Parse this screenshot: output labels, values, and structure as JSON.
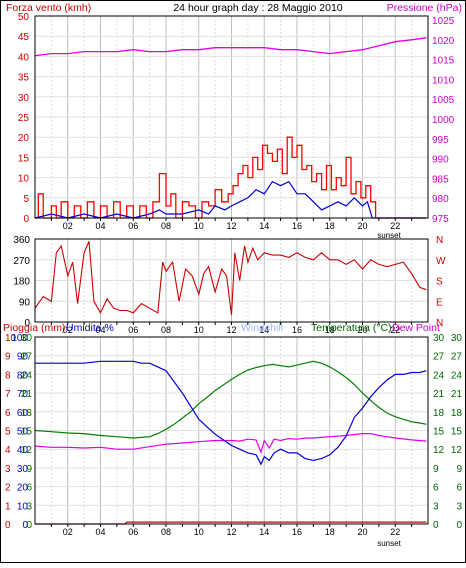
{
  "chart_data": [
    {
      "type": "line",
      "title": "24 hour graph day : 28 Maggio 2010",
      "left_axis_label": "Forza vento (kmh)",
      "right_axis_label": "Pressione (hPa)",
      "x_tick_labels": [
        "02",
        "04",
        "06",
        "08",
        "10",
        "12",
        "14",
        "16",
        "18",
        "20",
        "22"
      ],
      "x_annotation": "sunset",
      "y_left_ticks": [
        "0",
        "5",
        "10",
        "15",
        "20",
        "25",
        "30",
        "35",
        "40",
        "45",
        "50"
      ],
      "y_right_ticks": [
        "975",
        "980",
        "985",
        "990",
        "995",
        "1000",
        "1005",
        "1010",
        "1015",
        "1020",
        "1025"
      ],
      "ylim_left": [
        0,
        50
      ],
      "ylim_right": [
        975,
        1026
      ],
      "colors": {
        "wind_gust": "#ff0000",
        "wind_avg": "#0000cc",
        "pressure": "#e000e0",
        "label_left": "#cc0000",
        "label_right": "#cc00cc"
      },
      "series": [
        {
          "role": "gust",
          "axis": "left",
          "x": [
            0.0,
            0.2,
            0.5,
            1.0,
            1.3,
            1.6,
            2.0,
            2.4,
            2.8,
            3.2,
            3.6,
            4.0,
            4.4,
            4.8,
            5.2,
            5.6,
            6.0,
            6.4,
            6.8,
            7.2,
            7.6,
            8.0,
            8.3,
            8.6,
            9.0,
            9.4,
            9.8,
            10.2,
            10.6,
            11.0,
            11.4,
            11.8,
            12.1,
            12.4,
            12.7,
            13.0,
            13.3,
            13.6,
            13.9,
            14.2,
            14.5,
            14.8,
            15.1,
            15.4,
            15.7,
            16.0,
            16.3,
            16.6,
            16.9,
            17.2,
            17.5,
            17.8,
            18.1,
            18.4,
            18.7,
            19.0,
            19.3,
            19.6,
            19.9,
            20.2,
            20.5,
            20.8,
            21.2,
            21.6,
            22.0,
            22.5,
            23.0,
            23.5,
            23.9
          ],
          "y": [
            0,
            6,
            0,
            3,
            0,
            4,
            0,
            3,
            0,
            4,
            0,
            3,
            0,
            4,
            0,
            3,
            0,
            3,
            0,
            4,
            11,
            3,
            6,
            0,
            4,
            3,
            0,
            4,
            3,
            7,
            4,
            6,
            8,
            11,
            13,
            10,
            15,
            12,
            18,
            16,
            14,
            17,
            11,
            20,
            15,
            18,
            12,
            13,
            9,
            11,
            7,
            13,
            7,
            10,
            8,
            15,
            6,
            9,
            5,
            8,
            4,
            0,
            0,
            0,
            0,
            0,
            0,
            0,
            0
          ]
        },
        {
          "role": "average",
          "axis": "left",
          "x": [
            0.0,
            1.0,
            2.0,
            3.0,
            4.0,
            5.0,
            6.0,
            7.0,
            7.6,
            8.0,
            9.0,
            10.0,
            10.6,
            11.0,
            11.6,
            12.0,
            12.5,
            13.0,
            13.5,
            14.0,
            14.5,
            15.0,
            15.5,
            16.0,
            16.5,
            17.0,
            17.5,
            18.0,
            18.5,
            19.0,
            19.5,
            20.0,
            20.3,
            20.6,
            21.0,
            22.0,
            23.0,
            23.9
          ],
          "y": [
            0,
            1,
            0,
            1,
            0,
            1,
            0,
            1,
            2,
            1,
            1,
            2,
            1,
            3,
            2,
            3,
            4,
            5,
            7,
            6,
            9,
            8,
            9,
            6,
            6,
            4,
            2,
            3,
            4,
            3,
            5,
            3,
            4,
            0,
            0,
            0,
            0,
            0
          ]
        },
        {
          "role": "pressure",
          "axis": "right",
          "x": [
            0,
            1,
            2,
            3,
            4,
            5,
            6,
            7,
            8,
            9,
            10,
            11,
            12,
            13,
            14,
            15,
            16,
            17,
            18,
            19,
            20,
            21,
            22,
            23,
            23.9
          ],
          "y": [
            1016,
            1016.5,
            1016.5,
            1017,
            1017,
            1017,
            1017.5,
            1017,
            1017,
            1017.5,
            1017.5,
            1018,
            1018,
            1018,
            1018,
            1017.5,
            1017.5,
            1017,
            1016.5,
            1017,
            1017.5,
            1018.5,
            1019.5,
            1020,
            1020.5
          ]
        }
      ]
    },
    {
      "type": "line",
      "title": "",
      "left_ticks": [
        "360",
        "270",
        "180",
        "90",
        "0"
      ],
      "right_ticks": [
        "N",
        "W",
        "S",
        "E",
        "N"
      ],
      "x_tick_labels": [
        "02",
        "04",
        "06",
        "08",
        "10",
        "12",
        "14",
        "16",
        "18",
        "20",
        "22"
      ],
      "ylim": [
        0,
        360
      ],
      "color": "#cc0000",
      "series": [
        {
          "role": "wind_direction",
          "x": [
            0,
            0.5,
            1,
            1.3,
            1.6,
            2,
            2.3,
            2.6,
            3,
            3.3,
            3.6,
            4,
            4.4,
            4.8,
            5.2,
            5.6,
            6,
            6.5,
            7,
            7.5,
            7.8,
            8,
            8.4,
            8.8,
            9.2,
            9.6,
            10,
            10.3,
            10.6,
            11,
            11.4,
            11.7,
            12,
            12.2,
            12.5,
            12.8,
            13,
            13.3,
            13.6,
            14,
            14.5,
            15,
            15.5,
            16,
            16.5,
            17,
            17.5,
            18,
            18.5,
            19,
            19.5,
            20,
            20.5,
            21,
            21.5,
            22,
            22.5,
            23,
            23.5,
            23.9
          ],
          "y": [
            60,
            110,
            90,
            300,
            330,
            200,
            260,
            80,
            300,
            350,
            90,
            40,
            100,
            60,
            50,
            50,
            40,
            80,
            60,
            40,
            260,
            220,
            260,
            90,
            230,
            200,
            120,
            210,
            240,
            130,
            230,
            200,
            30,
            300,
            180,
            330,
            260,
            320,
            270,
            300,
            290,
            290,
            280,
            300,
            280,
            270,
            300,
            270,
            270,
            250,
            270,
            230,
            270,
            250,
            240,
            250,
            260,
            210,
            150,
            140
          ]
        }
      ]
    },
    {
      "type": "line",
      "title": "",
      "labels": {
        "rain": "Pioggia (mm)",
        "humidity": "Umidita %",
        "windchill": "Windchill",
        "temperature": "Temperatura (°C)",
        "dew_point": "Dew Point",
        "sunset": "sunset"
      },
      "x_tick_labels": [
        "02",
        "04",
        "06",
        "08",
        "10",
        "12",
        "14",
        "16",
        "18",
        "20",
        "22"
      ],
      "left_outer_ticks": [
        "0",
        "1",
        "2",
        "3",
        "4",
        "5",
        "6",
        "7",
        "8",
        "9",
        "10"
      ],
      "left_inner_ticks": [
        "0",
        "10",
        "20",
        "30",
        "40",
        "50",
        "60",
        "70",
        "80",
        "90",
        "100"
      ],
      "left_temp_ticks": [
        "0",
        "3",
        "6",
        "9",
        "12",
        "15",
        "18",
        "21",
        "24",
        "27",
        "30"
      ],
      "right_inner_ticks": [
        "0",
        "3",
        "6",
        "9",
        "12",
        "15",
        "18",
        "21",
        "24",
        "27",
        "30"
      ],
      "right_outer_ticks": [
        "0",
        "3",
        "6",
        "9",
        "12",
        "15",
        "18",
        "21",
        "24",
        "27",
        "30"
      ],
      "ylim_temp": [
        0,
        30
      ],
      "ylim_humidity": [
        0,
        100
      ],
      "ylim_rain": [
        0,
        10
      ],
      "colors": {
        "humidity": "#0000cc",
        "temperature": "#008000",
        "dew_point": "#e000e0",
        "rain": "#cc0000",
        "windchill": "#99bbff",
        "temp_label": "#006600",
        "dew_label": "#cc00cc",
        "rain_label": "#cc0000",
        "humidity_label": "#0000cc"
      },
      "series": [
        {
          "role": "humidity",
          "axis": "humidity",
          "x": [
            0,
            1,
            2,
            3,
            4,
            5,
            6,
            6.5,
            7,
            7.5,
            8,
            8.5,
            9,
            9.5,
            10,
            10.5,
            11,
            11.5,
            12,
            12.5,
            13,
            13.5,
            13.8,
            14,
            14.3,
            14.6,
            15,
            15.5,
            16,
            16.5,
            17,
            17.5,
            18,
            18.5,
            19,
            19.5,
            20,
            20.5,
            21,
            21.5,
            22,
            22.5,
            23,
            23.5,
            23.9
          ],
          "y": [
            86,
            86,
            86,
            86,
            87,
            87,
            87,
            86,
            86,
            84,
            82,
            76,
            70,
            63,
            56,
            52,
            48,
            45,
            42,
            40,
            38,
            37,
            32,
            36,
            34,
            38,
            40,
            38,
            38,
            35,
            34,
            35,
            37,
            41,
            47,
            57,
            62,
            68,
            73,
            77,
            80,
            80,
            81,
            81,
            82
          ]
        },
        {
          "role": "temperature",
          "axis": "temp",
          "x": [
            0,
            1,
            2,
            3,
            4,
            5,
            6,
            6.5,
            7,
            7.5,
            8,
            8.5,
            9,
            9.5,
            10,
            10.5,
            11,
            11.5,
            12,
            12.5,
            13,
            13.5,
            14,
            14.5,
            15,
            15.5,
            16,
            16.5,
            17,
            17.5,
            18,
            18.5,
            19,
            19.5,
            20,
            20.5,
            21,
            21.5,
            22,
            22.5,
            23,
            23.5,
            23.9
          ],
          "y": [
            15,
            14.8,
            14.6,
            14.5,
            14.2,
            14,
            13.8,
            13.9,
            14,
            14.5,
            15.2,
            16,
            17,
            18,
            19.3,
            20.3,
            21.4,
            22.3,
            23.2,
            24,
            24.7,
            25.1,
            25.4,
            25.6,
            25.4,
            25.2,
            25.5,
            25.8,
            26.1,
            25.8,
            25.2,
            24.4,
            23.5,
            22.4,
            21,
            19.8,
            18.7,
            17.8,
            17.2,
            16.8,
            16.4,
            16.2,
            16
          ]
        },
        {
          "role": "dew_point",
          "axis": "temp",
          "x": [
            0,
            1,
            2,
            3,
            4,
            5,
            6,
            7,
            8,
            9,
            10,
            11,
            12,
            12.5,
            13,
            13.5,
            13.8,
            14,
            14.3,
            14.6,
            15,
            15.5,
            16,
            16.5,
            17,
            18,
            19,
            20,
            20.5,
            21,
            22,
            23,
            23.9
          ],
          "y": [
            12.5,
            12.3,
            12.3,
            12.2,
            12.3,
            12,
            12,
            12.4,
            12.8,
            13,
            13.2,
            13.4,
            13.4,
            13.3,
            13.6,
            13.5,
            11.5,
            13.4,
            12.2,
            13.6,
            13.4,
            13.7,
            13.6,
            13.8,
            13.8,
            14,
            14.2,
            14.5,
            14.5,
            14.2,
            13.8,
            13.5,
            13.3
          ]
        },
        {
          "role": "rain",
          "axis": "rain",
          "x": [
            0,
            5.5,
            5.6,
            23.9
          ],
          "y": [
            0,
            0,
            0.1,
            0.1
          ]
        }
      ]
    }
  ]
}
